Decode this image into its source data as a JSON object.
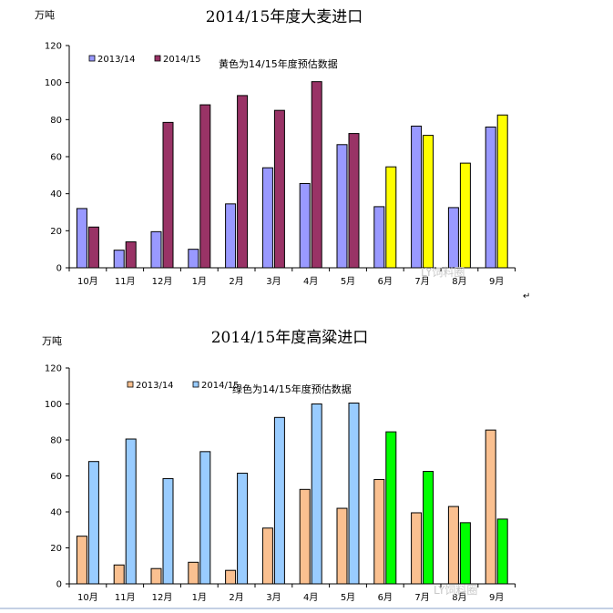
{
  "chart_data": [
    {
      "type": "bar",
      "title": "2014/15年度大麦进口",
      "ylabel": "万吨",
      "ylim": [
        0,
        120
      ],
      "yticks": [
        0,
        20,
        40,
        60,
        80,
        100,
        120
      ],
      "categories": [
        "10月",
        "11月",
        "12月",
        "1月",
        "2月",
        "3月",
        "4月",
        "5月",
        "6月",
        "7月",
        "8月",
        "9月"
      ],
      "series": [
        {
          "name": "2013/14",
          "color": "#9999ff",
          "values": [
            32,
            9.5,
            19.5,
            10,
            34.5,
            54,
            45.5,
            66.5,
            33,
            76.5,
            32.5,
            76
          ]
        },
        {
          "name": "2014/15",
          "color": "#993366",
          "values": [
            22,
            14,
            78.5,
            88,
            93,
            85,
            100.5,
            72.5,
            54.5,
            71.5,
            56.5,
            82.5
          ],
          "estimate_from_index": 8,
          "estimate_color": "#ffff00"
        }
      ],
      "note": "黄色为14/15年度预估数据"
    },
    {
      "type": "bar",
      "title": "2014/15年度高粱进口",
      "ylabel": "万吨",
      "ylim": [
        0,
        120
      ],
      "yticks": [
        0,
        20,
        40,
        60,
        80,
        100,
        120
      ],
      "categories": [
        "10月",
        "11月",
        "12月",
        "1月",
        "2月",
        "3月",
        "4月",
        "5月",
        "6月",
        "7月",
        "8月",
        "9月"
      ],
      "series": [
        {
          "name": "2013/14",
          "color": "#fac090",
          "values": [
            26.5,
            10.5,
            8.5,
            12,
            7.5,
            31,
            52.5,
            42,
            58,
            39.5,
            43,
            85.5
          ]
        },
        {
          "name": "2014/15",
          "color": "#99ccff",
          "values": [
            68,
            80.5,
            58.5,
            73.5,
            61.5,
            92.5,
            100,
            100.5,
            84.5,
            62.5,
            34,
            36
          ],
          "estimate_from_index": 8,
          "estimate_color": "#00ff00"
        }
      ],
      "note": "绿色为14/15年度预估数据"
    }
  ],
  "watermark": "LY饲料圈"
}
